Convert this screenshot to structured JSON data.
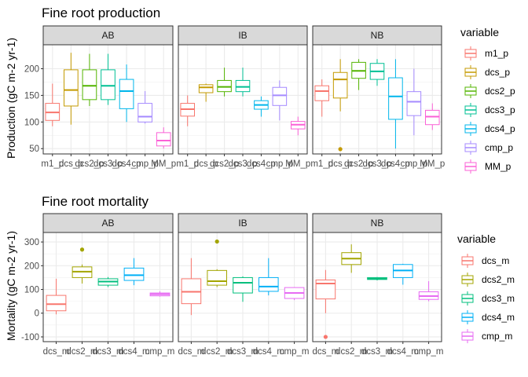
{
  "chart_data": [
    {
      "type": "boxplot",
      "title": "Fine root production",
      "ylabel": "Production (gC m-2 yr-1)",
      "ylim": [
        40,
        245
      ],
      "yticks": [
        50,
        100,
        150,
        200
      ],
      "legend_title": "variable",
      "legend_position": "right",
      "variables": [
        "m1_p",
        "dcs_p",
        "dcs2_p",
        "dcs3_p",
        "dcs4_p",
        "cmp_p",
        "MM_p"
      ],
      "colors": [
        "#F8766D",
        "#C49A00",
        "#53B400",
        "#00C094",
        "#00B6EB",
        "#A58AFF",
        "#FB61D7"
      ],
      "panels": [
        {
          "label": "AB",
          "boxes": [
            {
              "variable": "m1_p",
              "min": 92,
              "q1": 103,
              "median": 118,
              "q3": 135,
              "max": 172,
              "outliers": []
            },
            {
              "variable": "dcs_p",
              "min": 95,
              "q1": 130,
              "median": 160,
              "q3": 198,
              "max": 230,
              "outliers": []
            },
            {
              "variable": "dcs2_p",
              "min": 130,
              "q1": 142,
              "median": 168,
              "q3": 198,
              "max": 228,
              "outliers": []
            },
            {
              "variable": "dcs3_p",
              "min": 132,
              "q1": 142,
              "median": 168,
              "q3": 198,
              "max": 228,
              "outliers": []
            },
            {
              "variable": "dcs4_p",
              "min": 100,
              "q1": 125,
              "median": 158,
              "q3": 180,
              "max": 208,
              "outliers": []
            },
            {
              "variable": "cmp_p",
              "min": 97,
              "q1": 100,
              "median": 110,
              "q3": 135,
              "max": 158,
              "outliers": []
            },
            {
              "variable": "MM_p",
              "min": 50,
              "q1": 55,
              "median": 65,
              "q3": 80,
              "max": 90,
              "outliers": []
            }
          ]
        },
        {
          "label": "IB",
          "boxes": [
            {
              "variable": "m1_p",
              "min": 92,
              "q1": 111,
              "median": 124,
              "q3": 135,
              "max": 150,
              "outliers": []
            },
            {
              "variable": "dcs_p",
              "min": 138,
              "q1": 155,
              "median": 165,
              "q3": 170,
              "max": 172,
              "outliers": []
            },
            {
              "variable": "dcs2_p",
              "min": 148,
              "q1": 157,
              "median": 166,
              "q3": 178,
              "max": 202,
              "outliers": []
            },
            {
              "variable": "dcs3_p",
              "min": 148,
              "q1": 157,
              "median": 166,
              "q3": 178,
              "max": 202,
              "outliers": []
            },
            {
              "variable": "dcs4_p",
              "min": 110,
              "q1": 124,
              "median": 132,
              "q3": 140,
              "max": 148,
              "outliers": []
            },
            {
              "variable": "cmp_p",
              "min": 103,
              "q1": 131,
              "median": 150,
              "q3": 165,
              "max": 178,
              "outliers": []
            },
            {
              "variable": "MM_p",
              "min": 75,
              "q1": 87,
              "median": 95,
              "q3": 101,
              "max": 110,
              "outliers": []
            }
          ]
        },
        {
          "label": "NB",
          "boxes": [
            {
              "variable": "m1_p",
              "min": 110,
              "q1": 140,
              "median": 158,
              "q3": 168,
              "max": 180,
              "outliers": []
            },
            {
              "variable": "dcs_p",
              "min": 120,
              "q1": 145,
              "median": 180,
              "q3": 193,
              "max": 218,
              "outliers": [
                49
              ]
            },
            {
              "variable": "dcs2_p",
              "min": 160,
              "q1": 182,
              "median": 196,
              "q3": 212,
              "max": 218,
              "outliers": []
            },
            {
              "variable": "dcs3_p",
              "min": 168,
              "q1": 180,
              "median": 195,
              "q3": 210,
              "max": 218,
              "outliers": []
            },
            {
              "variable": "dcs4_p",
              "min": 50,
              "q1": 105,
              "median": 148,
              "q3": 183,
              "max": 218,
              "outliers": []
            },
            {
              "variable": "cmp_p",
              "min": 75,
              "q1": 112,
              "median": 138,
              "q3": 157,
              "max": 200,
              "outliers": []
            },
            {
              "variable": "MM_p",
              "min": 85,
              "q1": 95,
              "median": 110,
              "q3": 122,
              "max": 135,
              "outliers": []
            }
          ]
        }
      ]
    },
    {
      "type": "boxplot",
      "title": "Fine root mortality",
      "ylabel": "Mortality (gC m-2 yr-1)",
      "ylim": [
        -120,
        340
      ],
      "yticks": [
        -100,
        0,
        100,
        200,
        300
      ],
      "legend_title": "variable",
      "legend_position": "right",
      "variables": [
        "dcs_m",
        "dcs2_m",
        "dcs3_m",
        "dcs4_m",
        "cmp_m"
      ],
      "colors": [
        "#F8766D",
        "#A3A500",
        "#00BF7D",
        "#00B0F6",
        "#E76BF3"
      ],
      "panels": [
        {
          "label": "AB",
          "boxes": [
            {
              "variable": "dcs_m",
              "min": -5,
              "q1": 10,
              "median": 38,
              "q3": 75,
              "max": 145,
              "outliers": []
            },
            {
              "variable": "dcs2_m",
              "min": 125,
              "q1": 150,
              "median": 175,
              "q3": 195,
              "max": 205,
              "outliers": [
                268
              ]
            },
            {
              "variable": "dcs3_m",
              "min": 110,
              "q1": 118,
              "median": 133,
              "q3": 145,
              "max": 152,
              "outliers": []
            },
            {
              "variable": "dcs4_m",
              "min": 118,
              "q1": 138,
              "median": 160,
              "q3": 190,
              "max": 232,
              "outliers": []
            },
            {
              "variable": "cmp_m",
              "min": 70,
              "q1": 73,
              "median": 80,
              "q3": 85,
              "max": 92,
              "outliers": []
            }
          ]
        },
        {
          "label": "IB",
          "boxes": [
            {
              "variable": "dcs_m",
              "min": -8,
              "q1": 40,
              "median": 90,
              "q3": 145,
              "max": 232,
              "outliers": []
            },
            {
              "variable": "dcs2_m",
              "min": 110,
              "q1": 118,
              "median": 135,
              "q3": 180,
              "max": 185,
              "outliers": [
                302
              ]
            },
            {
              "variable": "dcs3_m",
              "min": 48,
              "q1": 85,
              "median": 128,
              "q3": 150,
              "max": 155,
              "outliers": []
            },
            {
              "variable": "dcs4_m",
              "min": 75,
              "q1": 92,
              "median": 112,
              "q3": 150,
              "max": 232,
              "outliers": []
            },
            {
              "variable": "cmp_m",
              "min": 55,
              "q1": 62,
              "median": 85,
              "q3": 108,
              "max": 110,
              "outliers": []
            }
          ]
        },
        {
          "label": "NB",
          "boxes": [
            {
              "variable": "dcs_m",
              "min": 0,
              "q1": 60,
              "median": 125,
              "q3": 140,
              "max": 182,
              "outliers": [
                -100
              ]
            },
            {
              "variable": "dcs2_m",
              "min": 170,
              "q1": 205,
              "median": 230,
              "q3": 255,
              "max": 290,
              "outliers": []
            },
            {
              "variable": "dcs3_m",
              "min": 138,
              "q1": 142,
              "median": 145,
              "q3": 150,
              "max": 152,
              "outliers": []
            },
            {
              "variable": "dcs4_m",
              "min": 120,
              "q1": 150,
              "median": 180,
              "q3": 205,
              "max": 208,
              "outliers": []
            },
            {
              "variable": "cmp_m",
              "min": 50,
              "q1": 58,
              "median": 72,
              "q3": 90,
              "max": 135,
              "outliers": []
            }
          ]
        }
      ]
    }
  ]
}
